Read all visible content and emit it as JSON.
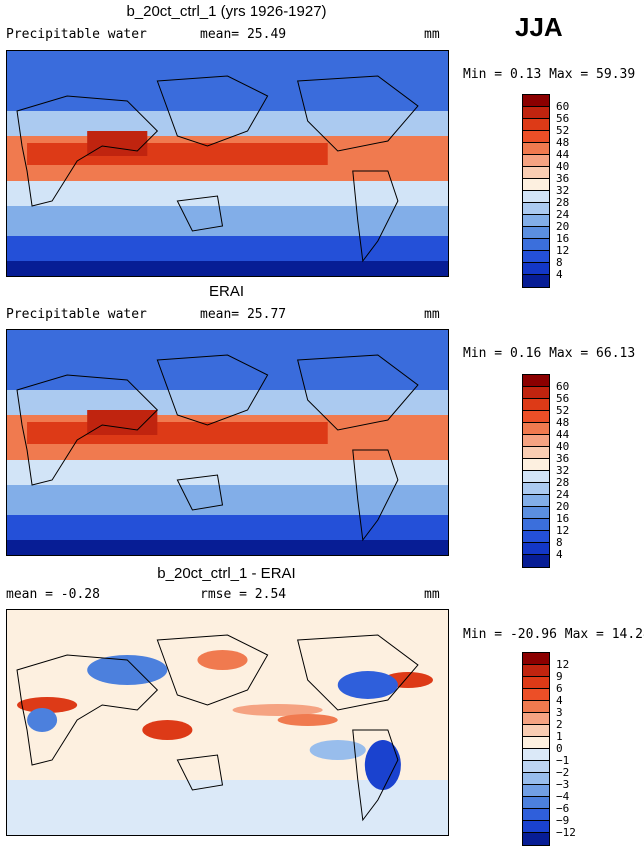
{
  "season": "JJA",
  "panels": [
    {
      "title": "b_20ct_ctrl_1 (yrs 1926-1927)",
      "left_label": "Precipitable water",
      "mid_label": "mean=  25.49",
      "units": "mm",
      "minmax": "Min =   0.13 Max =  59.39",
      "colorbar_labels": [
        "60",
        "56",
        "52",
        "48",
        "44",
        "40",
        "36",
        "32",
        "28",
        "24",
        "20",
        "16",
        "12",
        "8",
        "4"
      ]
    },
    {
      "title": "ERAI",
      "left_label": "Precipitable water",
      "mid_label": "mean=  25.77",
      "units": "mm",
      "minmax": "Min =   0.16 Max =  66.13",
      "colorbar_labels": [
        "60",
        "56",
        "52",
        "48",
        "44",
        "40",
        "36",
        "32",
        "28",
        "24",
        "20",
        "16",
        "12",
        "8",
        "4"
      ]
    },
    {
      "title": "b_20ct_ctrl_1 - ERAI",
      "left_label": "mean =  -0.28",
      "mid_label": "rmse =   2.54",
      "units": "mm",
      "minmax": "Min = -20.96 Max =  14.28",
      "colorbar_labels": [
        "12",
        "9",
        "6",
        "4",
        "3",
        "2",
        "1",
        "0",
        "−1",
        "−2",
        "−3",
        "−4",
        "−6",
        "−9",
        "−12"
      ]
    }
  ],
  "colors": {
    "abs_scale": [
      "#8b0000",
      "#c0240f",
      "#dd3a17",
      "#ec4f27",
      "#f07a4f",
      "#f5a382",
      "#f9cdb3",
      "#fdf0e0",
      "#d2e4f7",
      "#abcaf0",
      "#82aee8",
      "#5b8fe0",
      "#3b6fdc",
      "#2450d8",
      "#1337c7",
      "#071d95"
    ],
    "diff_scale": [
      "#8b0000",
      "#c0240f",
      "#dd3a17",
      "#ec4f27",
      "#f07a4f",
      "#f5a382",
      "#f9cdb3",
      "#fdf0e0",
      "#dbe9f8",
      "#bdd5f3",
      "#98bdec",
      "#719fe4",
      "#4c80dd",
      "#2f5fdb",
      "#1a42cf",
      "#071d95"
    ]
  },
  "chart_data": [
    {
      "type": "heatmap",
      "title": "b_20ct_ctrl_1 (yrs 1926-1927)",
      "subtitle": "Precipitable water",
      "units": "mm",
      "mean": 25.49,
      "min": 0.13,
      "max": 59.39,
      "contour_levels": [
        4,
        8,
        12,
        16,
        20,
        24,
        28,
        32,
        36,
        40,
        44,
        48,
        52,
        56,
        60
      ]
    },
    {
      "type": "heatmap",
      "title": "ERAI",
      "subtitle": "Precipitable water",
      "units": "mm",
      "mean": 25.77,
      "min": 0.16,
      "max": 66.13,
      "contour_levels": [
        4,
        8,
        12,
        16,
        20,
        24,
        28,
        32,
        36,
        40,
        44,
        48,
        52,
        56,
        60
      ]
    },
    {
      "type": "heatmap",
      "title": "b_20ct_ctrl_1 - ERAI",
      "units": "mm",
      "mean": -0.28,
      "rmse": 2.54,
      "min": -20.96,
      "max": 14.28,
      "contour_levels": [
        -12,
        -9,
        -6,
        -4,
        -3,
        -2,
        -1,
        0,
        1,
        2,
        3,
        4,
        6,
        9,
        12
      ]
    }
  ]
}
